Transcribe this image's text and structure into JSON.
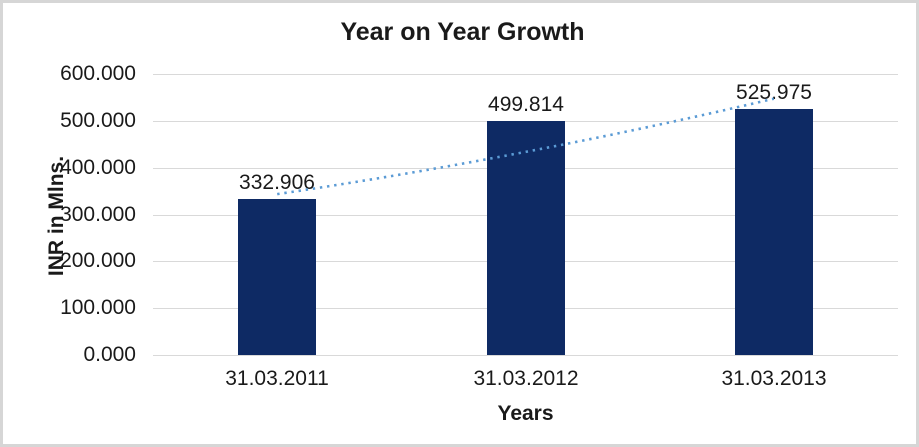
{
  "chart": {
    "title": "Year on Year Growth",
    "x_axis_title": "Years",
    "y_axis_title": "INR in Mlns."
  },
  "chart_data": {
    "type": "bar",
    "title": "Year on Year Growth",
    "xlabel": "Years",
    "ylabel": "INR in Mlns.",
    "categories": [
      "31.03.2011",
      "31.03.2012",
      "31.03.2013"
    ],
    "values": [
      332.906,
      499.814,
      525.975
    ],
    "value_labels": [
      "332.906",
      "499.814",
      "525.975"
    ],
    "ylim": [
      0,
      600
    ],
    "yticks": [
      600,
      500,
      400,
      300,
      200,
      100,
      0
    ],
    "ytick_labels": [
      "600.000",
      "500.000",
      "400.000",
      "300.000",
      "200.000",
      "100.000",
      "0.000"
    ],
    "grid": "horizontal",
    "legend": "none",
    "trendline": {
      "style": "dotted",
      "from_category": "31.03.2011",
      "to_category": "31.03.2013"
    }
  },
  "colors": {
    "bar": "#0e2a64",
    "trendline": "#5b9bd5",
    "gridline": "#d9d9d9",
    "text": "#1a1a1a",
    "frame_border": "#d6d6d6",
    "background": "#ffffff"
  }
}
